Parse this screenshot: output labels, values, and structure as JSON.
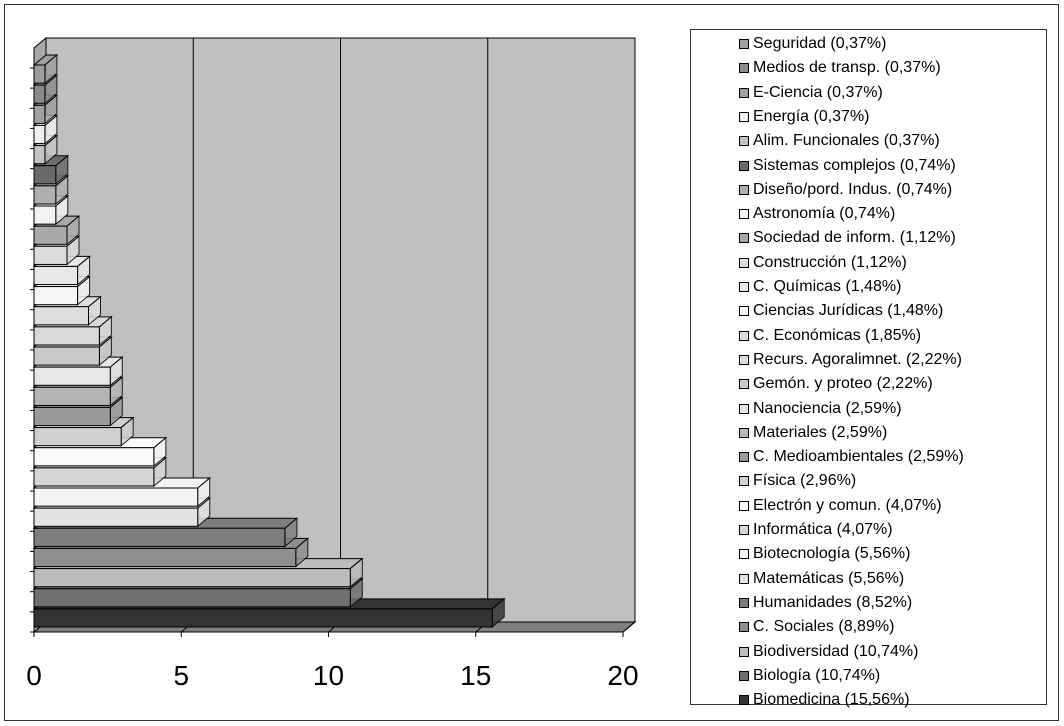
{
  "chart_data": {
    "type": "bar",
    "orientation": "horizontal",
    "style": "3d",
    "xlim": [
      0,
      20
    ],
    "ticks": [
      "0",
      "5",
      "10",
      "15",
      "20"
    ],
    "grid": true,
    "legend_position": "right",
    "categories": [
      {
        "label": "Biomedicina (15,56%)",
        "value": 15.56,
        "color": "#333333"
      },
      {
        "label": "Biología (10,74%)",
        "value": 10.74,
        "color": "#707070"
      },
      {
        "label": "Biodiversidad (10,74%)",
        "value": 10.74,
        "color": "#bcbcbc"
      },
      {
        "label": "C. Sociales (8,89%)",
        "value": 8.89,
        "color": "#8e8e8e"
      },
      {
        "label": "Humanidades (8,52%)",
        "value": 8.52,
        "color": "#7e7e7e"
      },
      {
        "label": "Matemáticas (5,56%)",
        "value": 5.56,
        "color": "#e2e2e2"
      },
      {
        "label": "Biotecnología (5,56%)",
        "value": 5.56,
        "color": "#f4f4f4"
      },
      {
        "label": "Informática (4,07%)",
        "value": 4.07,
        "color": "#d6d6d6"
      },
      {
        "label": "Electrón y comun. (4,07%)",
        "value": 4.07,
        "color": "#fafafa"
      },
      {
        "label": "Física (2,96%)",
        "value": 2.96,
        "color": "#cfcfcf"
      },
      {
        "label": "C. Medioambientales (2,59%)",
        "value": 2.59,
        "color": "#9a9a9a"
      },
      {
        "label": "Materiales (2,59%)",
        "value": 2.59,
        "color": "#b5b5b5"
      },
      {
        "label": "Nanociencia (2,59%)",
        "value": 2.59,
        "color": "#e6e6e6"
      },
      {
        "label": "Gemón. y proteo (2,22%)",
        "value": 2.22,
        "color": "#c9c9c9"
      },
      {
        "label": "Recurs. Agoralimnet. (2,22%)",
        "value": 2.22,
        "color": "#d9d9d9"
      },
      {
        "label": "C. Económicas (1,85%)",
        "value": 1.85,
        "color": "#dedede"
      },
      {
        "label": "Ciencias Jurídicas (1,48%)",
        "value": 1.48,
        "color": "#f6f6f6"
      },
      {
        "label": "C. Químicas (1,48%)",
        "value": 1.48,
        "color": "#e8e8e8"
      },
      {
        "label": "Construcción (1,12%)",
        "value": 1.12,
        "color": "#dcdcdc"
      },
      {
        "label": "Sociedad de inform. (1,12%)",
        "value": 1.12,
        "color": "#a9a9a9"
      },
      {
        "label": "Astronomía (0,74%)",
        "value": 0.74,
        "color": "#f2f2f2"
      },
      {
        "label": "Diseño/pord. Indus. (0,74%)",
        "value": 0.74,
        "color": "#b0b0b0"
      },
      {
        "label": "Sistemas complejos (0,74%)",
        "value": 0.74,
        "color": "#6a6a6a"
      },
      {
        "label": "Alim. Funcionales (0,37%)",
        "value": 0.37,
        "color": "#c4c4c4"
      },
      {
        "label": "Energía (0,37%)",
        "value": 0.37,
        "color": "#f0f0f0"
      },
      {
        "label": "E-Ciencia (0,37%)",
        "value": 0.37,
        "color": "#a0a0a0"
      },
      {
        "label": "Medios de transp. (0,37%)",
        "value": 0.37,
        "color": "#8a8a8a"
      },
      {
        "label": "Seguridad (0,37%)",
        "value": 0.37,
        "color": "#9e9e9e"
      }
    ],
    "colors": {
      "plot_back": "#c0c0c0",
      "floor": "#808080",
      "side_wall": "#a8a8a8",
      "gridline": "#000000"
    }
  }
}
